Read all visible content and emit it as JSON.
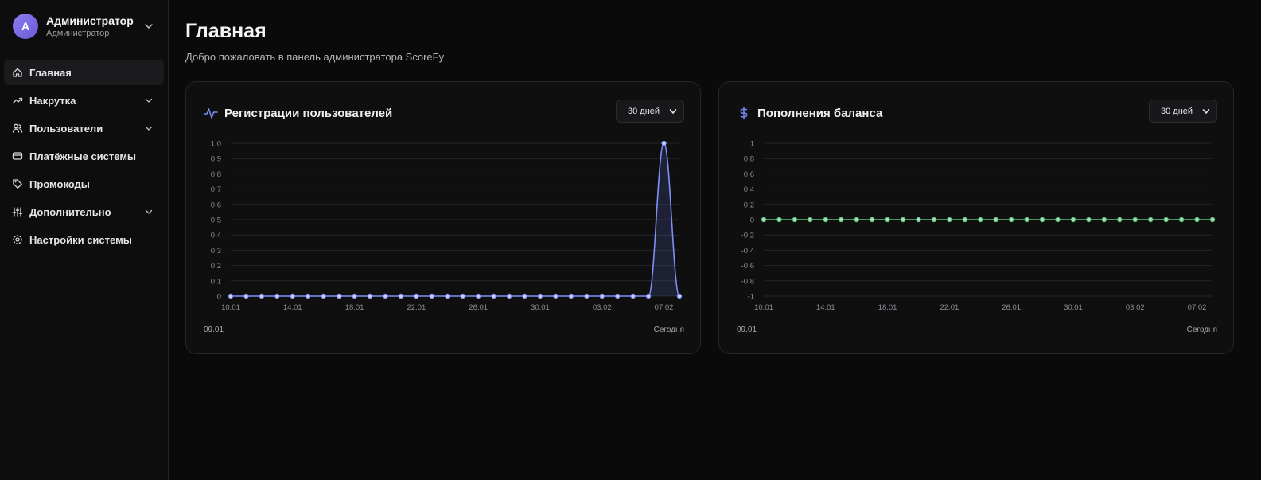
{
  "user": {
    "initial": "А",
    "name": "Администратор",
    "role": "Администратор"
  },
  "nav": [
    {
      "label": "Главная",
      "icon": "home-icon",
      "active": true,
      "expandable": false
    },
    {
      "label": "Накрутка",
      "icon": "trending-up-icon",
      "active": false,
      "expandable": true
    },
    {
      "label": "Пользователи",
      "icon": "users-icon",
      "active": false,
      "expandable": true
    },
    {
      "label": "Платёжные системы",
      "icon": "credit-card-icon",
      "active": false,
      "expandable": false
    },
    {
      "label": "Промокоды",
      "icon": "tag-icon",
      "active": false,
      "expandable": false
    },
    {
      "label": "Дополнительно",
      "icon": "sliders-icon",
      "active": false,
      "expandable": true
    },
    {
      "label": "Настройки системы",
      "icon": "gear-icon",
      "active": false,
      "expandable": false
    }
  ],
  "page": {
    "title": "Главная",
    "subtitle": "Добро пожаловать в панель администратора ScoreFy"
  },
  "colors": {
    "registrations": "#7f8ff7",
    "balance": "#5fbf7f",
    "accent_dollar": "#7a86f0"
  },
  "cards": [
    {
      "title": "Регистрации пользователей",
      "icon": "activity-icon",
      "period": "30 дней",
      "start_label": "09.01",
      "end_label": "Сегодня"
    },
    {
      "title": "Пополнения баланса",
      "icon": "dollar-icon",
      "period": "30 дней",
      "start_label": "09.01",
      "end_label": "Сегодня"
    }
  ],
  "chart_data": [
    {
      "type": "area",
      "title": "Регистрации пользователей",
      "x": [
        "10.01",
        "11.01",
        "12.01",
        "13.01",
        "14.01",
        "15.01",
        "16.01",
        "17.01",
        "18.01",
        "19.01",
        "20.01",
        "21.01",
        "22.01",
        "23.01",
        "24.01",
        "25.01",
        "26.01",
        "27.01",
        "28.01",
        "29.01",
        "30.01",
        "31.01",
        "01.02",
        "02.02",
        "03.02",
        "04.02",
        "05.02",
        "06.02",
        "07.02",
        "08.02"
      ],
      "x_tick_labels": [
        "10.01",
        "14.01",
        "18.01",
        "22.01",
        "26.01",
        "30.01",
        "03.02",
        "07.02"
      ],
      "series": [
        {
          "values": [
            0,
            0,
            0,
            0,
            0,
            0,
            0,
            0,
            0,
            0,
            0,
            0,
            0,
            0,
            0,
            0,
            0,
            0,
            0,
            0,
            0,
            0,
            0,
            0,
            0,
            0,
            0,
            0,
            1,
            0
          ]
        }
      ],
      "y_ticks": [
        "0",
        "0,1",
        "0,2",
        "0,3",
        "0,4",
        "0,5",
        "0,6",
        "0,7",
        "0,8",
        "0,9",
        "1,0"
      ],
      "ylim": [
        0,
        1
      ],
      "grid": true
    },
    {
      "type": "line",
      "title": "Пополнения баланса",
      "x": [
        "10.01",
        "11.01",
        "12.01",
        "13.01",
        "14.01",
        "15.01",
        "16.01",
        "17.01",
        "18.01",
        "19.01",
        "20.01",
        "21.01",
        "22.01",
        "23.01",
        "24.01",
        "25.01",
        "26.01",
        "27.01",
        "28.01",
        "29.01",
        "30.01",
        "31.01",
        "01.02",
        "02.02",
        "03.02",
        "04.02",
        "05.02",
        "06.02",
        "07.02",
        "08.02"
      ],
      "x_tick_labels": [
        "10.01",
        "14.01",
        "18.01",
        "22.01",
        "26.01",
        "30.01",
        "03.02",
        "07.02"
      ],
      "series": [
        {
          "values": [
            0,
            0,
            0,
            0,
            0,
            0,
            0,
            0,
            0,
            0,
            0,
            0,
            0,
            0,
            0,
            0,
            0,
            0,
            0,
            0,
            0,
            0,
            0,
            0,
            0,
            0,
            0,
            0,
            0,
            0
          ]
        }
      ],
      "y_ticks": [
        "-1",
        "-0.8",
        "-0.6",
        "-0.4",
        "-0.2",
        "0",
        "0.2",
        "0.4",
        "0.6",
        "0.8",
        "1"
      ],
      "ylim": [
        -1,
        1
      ],
      "grid": true
    }
  ]
}
